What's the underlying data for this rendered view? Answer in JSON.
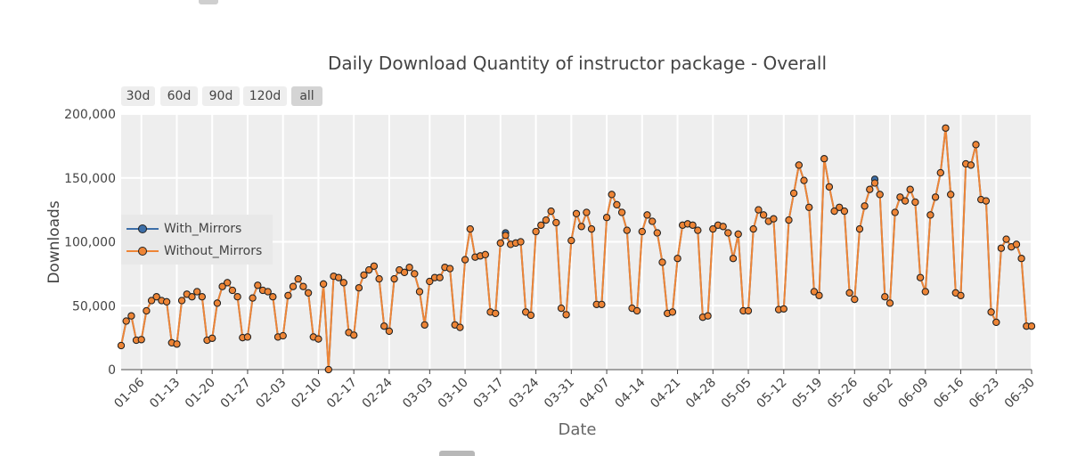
{
  "range_buttons": [
    "30d",
    "60d",
    "90d",
    "120d",
    "all"
  ],
  "active_range": "all",
  "colors": {
    "with_mirrors": "#3d6fa8",
    "without_mirrors": "#ee8536",
    "plot_bg": "#eeeeee",
    "grid": "#ffffff"
  },
  "chart_data": {
    "type": "line",
    "title": "Daily Download Quantity of instructor package - Overall",
    "xlabel": "Date",
    "ylabel": "Downloads",
    "ylim": [
      0,
      200000
    ],
    "y_ticks": [
      0,
      50000,
      100000,
      150000,
      200000
    ],
    "y_tick_labels": [
      "0",
      "50,000",
      "100,000",
      "150,000",
      "200,000"
    ],
    "x_ticks": [
      "2024-01-06",
      "2024-01-13",
      "2024-01-20",
      "2024-01-27",
      "2024-02-03",
      "2024-02-10",
      "2024-02-17",
      "2024-02-24",
      "2024-03-03",
      "2024-03-10",
      "2024-03-17",
      "2024-03-24",
      "2024-03-31",
      "2024-04-07",
      "2024-04-14",
      "2024-04-21",
      "2024-04-28",
      "2024-05-05",
      "2024-05-12",
      "2024-05-19",
      "2024-05-26",
      "2024-06-02",
      "2024-06-09",
      "2024-06-16",
      "2024-06-23",
      "2024-06-30"
    ],
    "x_tick_labels": [
      "01-06",
      "01-13",
      "01-20",
      "01-27",
      "02-03",
      "02-10",
      "02-17",
      "02-24",
      "03-03",
      "03-10",
      "03-17",
      "03-24",
      "03-31",
      "04-07",
      "04-14",
      "04-21",
      "04-28",
      "05-05",
      "05-12",
      "05-19",
      "05-26",
      "06-02",
      "06-09",
      "06-16",
      "06-23",
      "06-30"
    ],
    "x_start": "2024-01-02",
    "x_end": "2024-06-30",
    "legend_position": "left-middle",
    "grid": true,
    "series": [
      {
        "name": "With_Mirrors",
        "values": [
          18800,
          38000,
          42000,
          23000,
          23500,
          46000,
          54000,
          57000,
          54000,
          53000,
          21000,
          20000,
          54000,
          59000,
          57000,
          61000,
          57000,
          23000,
          24500,
          52000,
          65000,
          68000,
          62000,
          57000,
          25000,
          25500,
          56000,
          66000,
          62000,
          61000,
          57000,
          25500,
          26500,
          58000,
          65000,
          71000,
          65000,
          60000,
          25500,
          24000,
          67000,
          0,
          73000,
          72000,
          68000,
          29000,
          27000,
          64000,
          74000,
          78000,
          81000,
          71000,
          34000,
          30000,
          71000,
          78000,
          76000,
          80000,
          75000,
          61000,
          35000,
          69000,
          72000,
          72000,
          80000,
          79000,
          35000,
          33000,
          86000,
          110000,
          88000,
          89000,
          90000,
          45000,
          44000,
          99000,
          107000,
          98000,
          99000,
          100000,
          45000,
          42500,
          108000,
          113000,
          117000,
          124000,
          115000,
          48000,
          43000,
          101000,
          122000,
          112000,
          123000,
          110000,
          51000,
          51000,
          119000,
          137000,
          129000,
          123000,
          109000,
          48000,
          46000,
          108000,
          121000,
          116000,
          107000,
          84000,
          44000,
          45000,
          87000,
          113000,
          114000,
          113000,
          109000,
          41000,
          42000,
          110000,
          113000,
          112000,
          107000,
          87000,
          106000,
          46000,
          46000,
          110000,
          125000,
          121000,
          116000,
          118000,
          47000,
          47500,
          117000,
          138000,
          160000,
          148000,
          127000,
          61000,
          58000,
          165000,
          143000,
          124000,
          127000,
          124000,
          60000,
          55000,
          110000,
          128000,
          141000,
          149000,
          137000,
          57000,
          52000,
          123000,
          135000,
          132000,
          141000,
          131000,
          72000,
          61000,
          121000,
          135000,
          154000,
          189000,
          137000,
          60000,
          58000,
          161000,
          160000,
          176000,
          133000,
          132000,
          45000,
          37000,
          95000,
          102000,
          96000,
          98000,
          87000,
          34000,
          34000
        ]
      },
      {
        "name": "Without_Mirrors",
        "values": [
          18800,
          38000,
          42000,
          23000,
          23500,
          46000,
          54000,
          57000,
          54000,
          53000,
          21000,
          20000,
          54000,
          59000,
          57000,
          61000,
          57000,
          23000,
          24500,
          52000,
          65000,
          68000,
          62000,
          57000,
          25000,
          25500,
          56000,
          66000,
          62000,
          61000,
          57000,
          25500,
          26500,
          58000,
          65000,
          71000,
          65000,
          60000,
          25500,
          24000,
          67000,
          0,
          73000,
          72000,
          68000,
          29000,
          27000,
          64000,
          74000,
          78000,
          81000,
          71000,
          34000,
          30000,
          71000,
          78000,
          76000,
          80000,
          75000,
          61000,
          35000,
          69000,
          72000,
          72000,
          80000,
          79000,
          35000,
          33000,
          86000,
          110000,
          88000,
          89000,
          90000,
          45000,
          44000,
          99000,
          105000,
          98000,
          99000,
          100000,
          45000,
          42500,
          108000,
          113000,
          117000,
          124000,
          115000,
          48000,
          43000,
          101000,
          122000,
          112000,
          123000,
          110000,
          51000,
          51000,
          119000,
          137000,
          129000,
          123000,
          109000,
          48000,
          46000,
          108000,
          121000,
          116000,
          107000,
          84000,
          44000,
          45000,
          87000,
          113000,
          114000,
          113000,
          109000,
          41000,
          42000,
          110000,
          113000,
          112000,
          107000,
          87000,
          106000,
          46000,
          46000,
          110000,
          125000,
          121000,
          116000,
          118000,
          47000,
          47500,
          117000,
          138000,
          160000,
          148000,
          127000,
          61000,
          58000,
          165000,
          143000,
          124000,
          127000,
          124000,
          60000,
          55000,
          110000,
          128000,
          141000,
          146000,
          137000,
          57000,
          52000,
          123000,
          135000,
          132000,
          141000,
          131000,
          72000,
          61000,
          121000,
          135000,
          154000,
          189000,
          137000,
          60000,
          58000,
          161000,
          160000,
          176000,
          133000,
          132000,
          45000,
          37000,
          95000,
          102000,
          96000,
          98000,
          87000,
          34000,
          34000
        ]
      }
    ]
  }
}
